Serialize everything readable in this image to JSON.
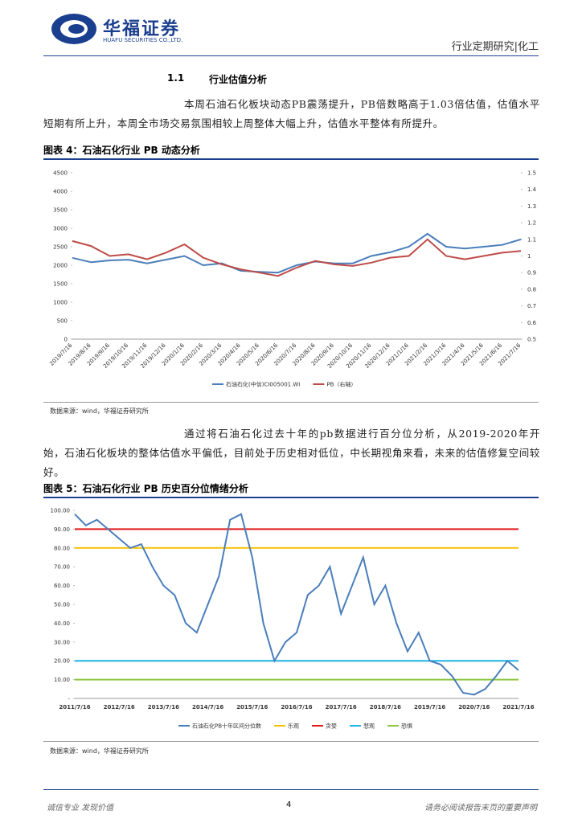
{
  "header": {
    "brand": "华福证券",
    "brand_en": "HUAFU SECURITIES CO.,LTD.",
    "report_type": "行业定期研究|化工"
  },
  "section": {
    "number": "1.1",
    "title": "行业估值分析"
  },
  "paragraphs": [
    "本周石油石化板块动态PB震荡提升，PB倍数略高于1.03倍估值，估值水平短期有所上升，本周全市场交易氛围相较上周整体大幅上升，估值水平整体有所提升。",
    "通过将石油石化过去十年的pb数据进行百分位分析，从2019-2020年开始，石油石化板块的整体估值水平偏低，目前处于历史相对低位，中长期视角来看，未来的估值修复空间较好。"
  ],
  "figures": [
    {
      "title": "图表 4：石油石化行业 PB 动态分析",
      "source": "数据来源：wind，华福证券研究所"
    },
    {
      "title": "图表 5：石油石化行业 PB 历史百分位情绪分析",
      "source": "数据来源：wind，华福证券研究所"
    }
  ],
  "footer": {
    "left": "诚信专业  发现价值",
    "page": "4",
    "right": "请务必阅读报告末页的重要声明"
  },
  "chart_data": [
    {
      "type": "line",
      "categories": [
        "2019/7/16",
        "2019/8/16",
        "2019/9/16",
        "2019/10/16",
        "2019/11/16",
        "2019/12/16",
        "2020/1/16",
        "2020/2/16",
        "2020/3/16",
        "2020/4/16",
        "2020/5/16",
        "2020/6/16",
        "2020/7/16",
        "2020/8/16",
        "2020/9/16",
        "2020/10/16",
        "2020/11/16",
        "2020/12/16",
        "2021/1/16",
        "2021/2/16",
        "2021/3/16",
        "2021/4/16",
        "2021/5/16",
        "2021/6/16",
        "2021/7/16"
      ],
      "series": [
        {
          "name": "石油石化(中信)CI005001.WI",
          "color": "#4a7ebb",
          "values": [
            2200,
            2080,
            2130,
            2150,
            2050,
            2150,
            2250,
            2000,
            2050,
            1850,
            1820,
            1800,
            2000,
            2100,
            2050,
            2050,
            2250,
            2350,
            2500,
            2850,
            2500,
            2450,
            2500,
            2550,
            2700
          ]
        },
        {
          "name": "PB（右轴）",
          "color": "#be4b48",
          "axis": "y2",
          "values": [
            1.09,
            1.06,
            1.0,
            1.01,
            0.98,
            1.02,
            1.07,
            0.99,
            0.95,
            0.92,
            0.9,
            0.88,
            0.93,
            0.97,
            0.95,
            0.94,
            0.96,
            0.99,
            1.0,
            1.1,
            1.0,
            0.98,
            1.0,
            1.02,
            1.03
          ]
        }
      ],
      "ylim": [
        0,
        4500
      ],
      "yticks": [
        0,
        500,
        1000,
        1500,
        2000,
        2500,
        3000,
        3500,
        4000,
        4500
      ],
      "y2lim": [
        0.5,
        1.5
      ],
      "y2ticks": [
        0.5,
        0.6,
        0.7,
        0.8,
        0.9,
        1,
        1.1,
        1.2,
        1.3,
        1.4,
        1.5
      ],
      "legend": "bottom"
    },
    {
      "type": "line",
      "categories": [
        "2011/7/16",
        null,
        null,
        null,
        "2012/7/16",
        null,
        null,
        null,
        "2013/7/16",
        null,
        null,
        null,
        "2014/7/16",
        null,
        null,
        null,
        "2015/7/16",
        null,
        null,
        null,
        "2016/7/16",
        null,
        null,
        null,
        "2017/7/16",
        null,
        null,
        null,
        "2018/7/16",
        null,
        null,
        null,
        "2019/7/16",
        null,
        null,
        null,
        "2020/7/16",
        null,
        null,
        null,
        "2021/7/16"
      ],
      "series": [
        {
          "name": "石油石化PB十年区间分位数",
          "color": "#4a7ebb",
          "values": [
            98,
            92,
            95,
            90,
            85,
            80,
            82,
            70,
            60,
            55,
            40,
            35,
            50,
            65,
            95,
            98,
            75,
            40,
            20,
            30,
            35,
            55,
            60,
            70,
            45,
            60,
            75,
            50,
            60,
            40,
            25,
            35,
            20,
            18,
            12,
            3,
            2,
            5,
            12,
            20,
            15
          ]
        }
      ],
      "reference_lines": [
        {
          "name": "乐观",
          "value": 80,
          "color": "#f5c000"
        },
        {
          "name": "贪婪",
          "value": 90,
          "color": "#e41a1c"
        },
        {
          "name": "悲观",
          "value": 20,
          "color": "#1fb4e8"
        },
        {
          "name": "恐惧",
          "value": 10,
          "color": "#8dc63f"
        }
      ],
      "ylim": [
        0,
        100
      ],
      "yticks": [
        {
          "value": 0,
          "label": "-"
        },
        {
          "value": 10,
          "label": "10.00"
        },
        {
          "value": 20,
          "label": "20.00"
        },
        {
          "value": 30,
          "label": "30.00"
        },
        {
          "value": 40,
          "label": "40.00"
        },
        {
          "value": 50,
          "label": "50.00"
        },
        {
          "value": 60,
          "label": "60.00"
        },
        {
          "value": 70,
          "label": "70.00"
        },
        {
          "value": 80,
          "label": "80.00"
        },
        {
          "value": 90,
          "label": "90.00"
        },
        {
          "value": 100,
          "label": "100.00"
        }
      ],
      "legend": "bottom"
    }
  ]
}
